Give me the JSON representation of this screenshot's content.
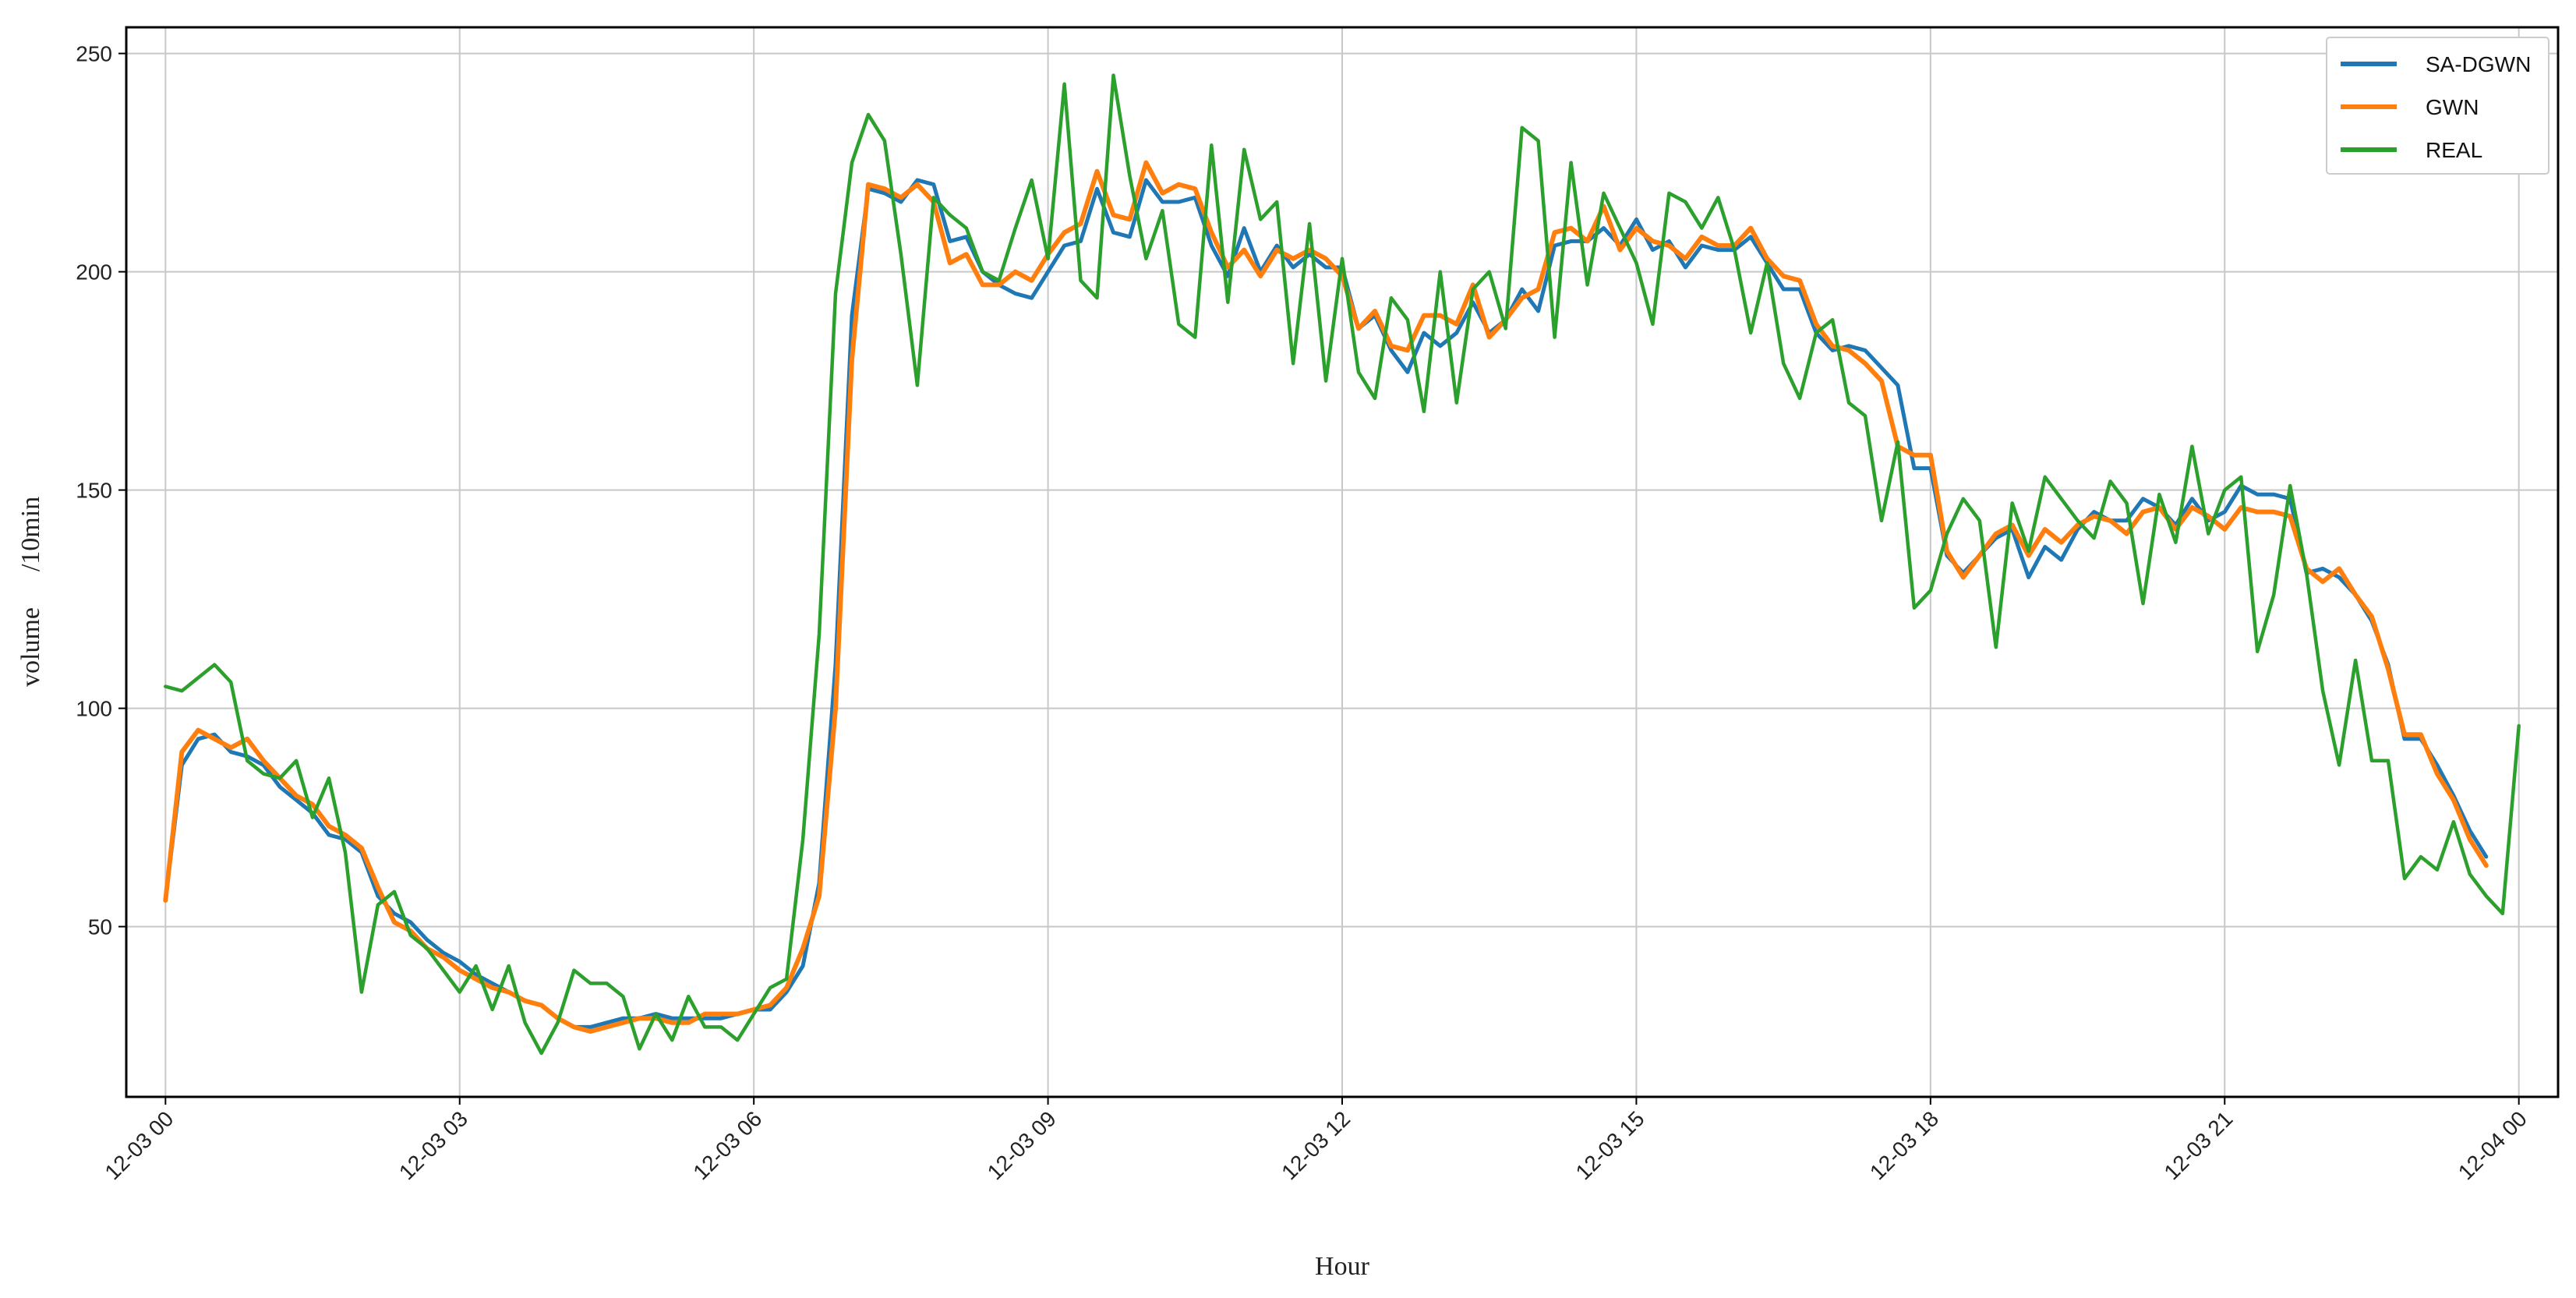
{
  "chart_data": {
    "type": "line",
    "xlabel": "Hour",
    "ylabel": "volume",
    "ylabel_unit": "/10min",
    "ylim": [
      11,
      256
    ],
    "yticks": [
      50,
      100,
      150,
      200,
      250
    ],
    "xlim_hours": [
      -0.4,
      24.4
    ],
    "xticks": [
      {
        "label": "12-03 00",
        "hour": 0
      },
      {
        "label": "12-03 03",
        "hour": 3
      },
      {
        "label": "12-03 06",
        "hour": 6
      },
      {
        "label": "12-03 09",
        "hour": 9
      },
      {
        "label": "12-03 12",
        "hour": 12
      },
      {
        "label": "12-03 15",
        "hour": 15
      },
      {
        "label": "12-03 18",
        "hour": 18
      },
      {
        "label": "12-03 21",
        "hour": 21
      },
      {
        "label": "12-04 00",
        "hour": 24
      }
    ],
    "grid": true,
    "legend_position": "top-right",
    "sample_interval_hours": 0.16667,
    "series": [
      {
        "name": "SA-DGWN",
        "color": "#1f77b4",
        "values": [
          56,
          87,
          93,
          94,
          90,
          89,
          87,
          82,
          79,
          76,
          71,
          70,
          67,
          57,
          53,
          51,
          47,
          44,
          42,
          39,
          37,
          35,
          33,
          32,
          29,
          27,
          27,
          28,
          29,
          29,
          30,
          29,
          29,
          29,
          29,
          30,
          31,
          31,
          35,
          41,
          60,
          110,
          190,
          219,
          218,
          216,
          221,
          220,
          207,
          208,
          200,
          197,
          195,
          194,
          200,
          206,
          207,
          219,
          209,
          208,
          221,
          216,
          216,
          217,
          206,
          199,
          210,
          200,
          206,
          201,
          204,
          201,
          201,
          187,
          190,
          182,
          177,
          186,
          183,
          186,
          193,
          186,
          189,
          196,
          191,
          206,
          207,
          207,
          210,
          206,
          212,
          205,
          207,
          201,
          206,
          205,
          205,
          208,
          202,
          196,
          196,
          186,
          182,
          183,
          182,
          178,
          174,
          155,
          155,
          135,
          131,
          135,
          139,
          141,
          130,
          137,
          134,
          141,
          145,
          143,
          143,
          148,
          146,
          142,
          148,
          143,
          145,
          151,
          149,
          149,
          148,
          131,
          132,
          130,
          126,
          120,
          110,
          93,
          93,
          87,
          80,
          72,
          66
        ]
      },
      {
        "name": "GWN",
        "color": "#ff7f0e",
        "values": [
          56,
          90,
          95,
          93,
          91,
          93,
          88,
          84,
          80,
          78,
          73,
          71,
          68,
          59,
          51,
          49,
          45,
          43,
          40,
          38,
          36,
          35,
          33,
          32,
          29,
          27,
          26,
          27,
          28,
          29,
          29,
          28,
          28,
          30,
          30,
          30,
          31,
          32,
          36,
          45,
          57,
          100,
          180,
          220,
          219,
          217,
          220,
          216,
          202,
          204,
          197,
          197,
          200,
          198,
          204,
          209,
          211,
          223,
          213,
          212,
          225,
          218,
          220,
          219,
          209,
          201,
          205,
          199,
          205,
          203,
          205,
          203,
          199,
          187,
          191,
          183,
          182,
          190,
          190,
          188,
          197,
          185,
          189,
          194,
          196,
          209,
          210,
          207,
          215,
          205,
          210,
          207,
          206,
          203,
          208,
          206,
          206,
          210,
          203,
          199,
          198,
          188,
          183,
          182,
          179,
          175,
          160,
          158,
          158,
          136,
          130,
          135,
          140,
          142,
          135,
          141,
          138,
          142,
          144,
          143,
          140,
          145,
          146,
          141,
          146,
          144,
          141,
          146,
          145,
          145,
          144,
          132,
          129,
          132,
          126,
          121,
          109,
          94,
          94,
          85,
          79,
          70,
          64
        ]
      },
      {
        "name": "REAL",
        "color": "#2ca02c",
        "values": [
          105,
          104,
          107,
          110,
          106,
          88,
          85,
          84,
          88,
          75,
          84,
          67,
          35,
          55,
          58,
          48,
          45,
          40,
          35,
          41,
          31,
          41,
          28,
          21,
          28,
          40,
          37,
          37,
          34,
          22,
          30,
          24,
          34,
          27,
          27,
          24,
          30,
          36,
          38,
          70,
          117,
          195,
          225,
          236,
          230,
          204,
          174,
          217,
          213,
          210,
          200,
          198,
          210,
          221,
          203,
          243,
          198,
          194,
          245,
          222,
          203,
          214,
          188,
          185,
          229,
          193,
          228,
          212,
          216,
          179,
          211,
          175,
          203,
          177,
          171,
          194,
          189,
          168,
          200,
          170,
          196,
          200,
          187,
          233,
          230,
          185,
          225,
          197,
          218,
          210,
          202,
          188,
          218,
          216,
          210,
          217,
          205,
          186,
          202,
          179,
          171,
          186,
          189,
          170,
          167,
          143,
          161,
          123,
          127,
          140,
          148,
          143,
          114,
          147,
          136,
          153,
          148,
          143,
          139,
          152,
          147,
          124,
          149,
          138,
          160,
          140,
          150,
          153,
          113,
          126,
          151,
          131,
          104,
          87,
          111,
          88,
          88,
          61,
          66,
          63,
          74,
          62,
          57,
          53,
          96
        ]
      }
    ]
  }
}
